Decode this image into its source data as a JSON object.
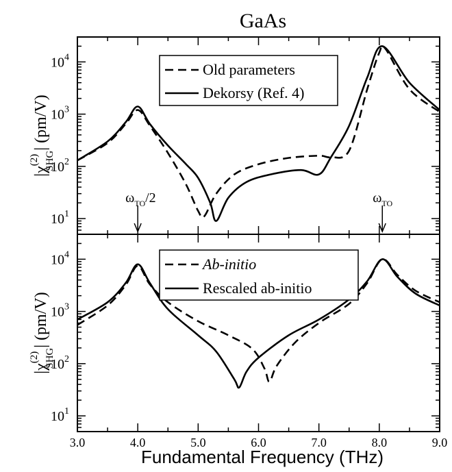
{
  "figure_title": "GaAs",
  "chart_data": [
    {
      "type": "line",
      "panel": "top",
      "xlabel": "Fundamental Frequency (THz)",
      "ylabel": {
        "prefix": "|χ",
        "superscript": "(2)",
        "subscript": "SHG",
        "suffix": "| (pm/V)"
      },
      "y_scale": "log",
      "xlim": [
        3.0,
        9.0
      ],
      "ylim": [
        5,
        30000
      ],
      "y_ticks": [
        {
          "base": "10",
          "exp": "1",
          "value": 10
        },
        {
          "base": "10",
          "exp": "2",
          "value": 100
        },
        {
          "base": "10",
          "exp": "3",
          "value": 1000
        },
        {
          "base": "10",
          "exp": "4",
          "value": 10000
        }
      ],
      "legend": {
        "position": "top-center",
        "entries": [
          "Old parameters",
          "Dekorsy (Ref. 4)"
        ]
      },
      "series": [
        {
          "name": "Old parameters",
          "style": "dashed",
          "x": [
            3.0,
            3.5,
            3.8,
            4.0,
            4.2,
            4.5,
            4.8,
            5.0,
            5.1,
            5.3,
            5.6,
            6.0,
            6.5,
            7.0,
            7.2,
            7.5,
            7.8,
            8.0,
            8.1,
            8.5,
            9.0
          ],
          "y": [
            130,
            280,
            650,
            1200,
            600,
            180,
            45,
            14,
            11,
            30,
            70,
            110,
            145,
            160,
            150,
            200,
            3000,
            15000,
            18000,
            3000,
            1100
          ]
        },
        {
          "name": "Dekorsy (Ref. 4)",
          "style": "solid",
          "x": [
            3.0,
            3.5,
            3.8,
            4.0,
            4.2,
            4.5,
            4.8,
            5.0,
            5.2,
            5.3,
            5.5,
            5.8,
            6.2,
            6.7,
            7.0,
            7.2,
            7.5,
            7.8,
            8.05,
            8.5,
            9.0
          ],
          "y": [
            130,
            300,
            700,
            1400,
            650,
            250,
            110,
            60,
            20,
            9,
            25,
            50,
            70,
            85,
            70,
            150,
            600,
            5000,
            20000,
            4000,
            1200
          ]
        }
      ],
      "annotations": [
        {
          "label": {
            "omega": "ω",
            "sub": "TO",
            "tail": "/2"
          },
          "x": 4.0
        },
        {
          "label": {
            "omega": "ω",
            "sub": "TO",
            "tail": ""
          },
          "x": 8.05
        }
      ]
    },
    {
      "type": "line",
      "panel": "bottom",
      "xlabel": "Fundamental Frequency (THz)",
      "ylabel": {
        "prefix": "|χ",
        "superscript": "(2)",
        "subscript": "SHG",
        "suffix": "| (pm/V)"
      },
      "y_scale": "log",
      "xlim": [
        3.0,
        9.0
      ],
      "ylim": [
        5,
        30000
      ],
      "x_ticks": [
        "3.0",
        "4.0",
        "5.0",
        "6.0",
        "7.0",
        "8.0",
        "9.0"
      ],
      "y_ticks": [
        {
          "base": "10",
          "exp": "1",
          "value": 10
        },
        {
          "base": "10",
          "exp": "2",
          "value": 100
        },
        {
          "base": "10",
          "exp": "3",
          "value": 1000
        },
        {
          "base": "10",
          "exp": "4",
          "value": 10000
        }
      ],
      "legend": {
        "position": "top-center",
        "entries": [
          "Ab-initio",
          "Rescaled ab-initio"
        ]
      },
      "series": [
        {
          "name": "Ab-initio",
          "style": "dashed",
          "x": [
            3.0,
            3.5,
            3.8,
            4.0,
            4.2,
            4.5,
            5.0,
            5.5,
            5.9,
            6.1,
            6.18,
            6.3,
            6.6,
            7.0,
            7.5,
            7.8,
            8.05,
            8.3,
            8.6,
            9.0
          ],
          "y": [
            550,
            1300,
            3200,
            7500,
            3300,
            1500,
            650,
            350,
            190,
            80,
            45,
            90,
            250,
            600,
            1400,
            3500,
            10000,
            5000,
            2500,
            1500
          ]
        },
        {
          "name": "Rescaled ab-initio",
          "style": "solid",
          "x": [
            3.0,
            3.5,
            3.8,
            4.0,
            4.2,
            4.5,
            5.0,
            5.3,
            5.6,
            5.68,
            5.8,
            6.0,
            6.5,
            7.0,
            7.5,
            7.8,
            8.05,
            8.3,
            8.6,
            9.0
          ],
          "y": [
            700,
            1500,
            3500,
            8000,
            3500,
            1100,
            350,
            170,
            50,
            35,
            70,
            130,
            350,
            700,
            1700,
            3800,
            10000,
            4600,
            2200,
            1300
          ]
        }
      ]
    }
  ]
}
